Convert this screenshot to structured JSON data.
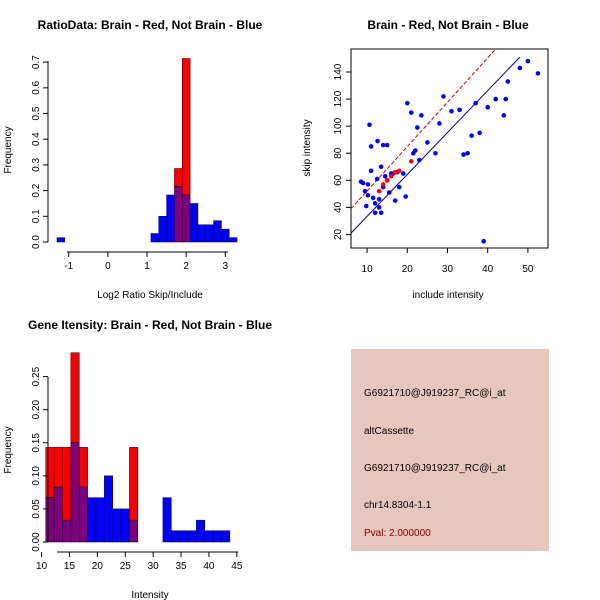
{
  "colors": {
    "red": "#ff0000",
    "blue": "#0000ff",
    "overlap": "#7f007f",
    "info_bg": "#e6c6be",
    "red_line": "#cc0000",
    "blue_line": "#00008b",
    "pval": "#8b0000"
  },
  "chart_data": [
    {
      "type": "histogram",
      "title": "RatioData: Brain - Red, Not Brain - Blue",
      "xlabel": "Log2 Ratio Skip/Include",
      "ylabel": "Frequency",
      "xlim": [
        -1.3,
        3.4
      ],
      "ylim": [
        0,
        0.72
      ],
      "xticks": [
        "-1",
        "0",
        "1",
        "2",
        "3"
      ],
      "xtick_values": [
        -1,
        0,
        1,
        2,
        3
      ],
      "yticks": [
        "0.0",
        "0.1",
        "0.2",
        "0.3",
        "0.4",
        "0.5",
        "0.6",
        "0.7"
      ],
      "ytick_values": [
        0,
        0.1,
        0.2,
        0.3,
        0.4,
        0.5,
        0.6,
        0.7
      ],
      "bin_width": 0.2,
      "bin_starts": [
        -1.3,
        -1.1,
        -0.9,
        -0.7,
        -0.5,
        -0.3,
        -0.1,
        0.1,
        0.3,
        0.5,
        0.7,
        0.9,
        1.1,
        1.3,
        1.5,
        1.7,
        1.9,
        2.1,
        2.3,
        2.5,
        2.7,
        2.9,
        3.1
      ],
      "series": [
        {
          "name": "Not Brain",
          "color": "blue",
          "values": [
            0.017,
            0,
            0,
            0,
            0,
            0,
            0,
            0,
            0,
            0,
            0,
            0,
            0.033,
            0.1,
            0.183,
            0.217,
            0.183,
            0.15,
            0.067,
            0.067,
            0.083,
            0.05,
            0.017
          ]
        },
        {
          "name": "Brain",
          "color": "red",
          "values": [
            0,
            0,
            0,
            0,
            0,
            0,
            0,
            0,
            0,
            0,
            0,
            0,
            0,
            0,
            0,
            0.286,
            0.714,
            0,
            0,
            0,
            0,
            0,
            0
          ]
        }
      ]
    },
    {
      "type": "scatter",
      "title": "Brain - Red, Not Brain - Blue",
      "xlabel": "include intensity",
      "ylabel": "skip intensity",
      "xlim": [
        6,
        55
      ],
      "ylim": [
        10,
        157
      ],
      "xticks": [
        "10",
        "20",
        "30",
        "40",
        "50"
      ],
      "xtick_values": [
        10,
        20,
        30,
        40,
        50
      ],
      "yticks": [
        "20",
        "40",
        "60",
        "80",
        "100",
        "120",
        "140"
      ],
      "ytick_values": [
        20,
        40,
        60,
        80,
        100,
        120,
        140
      ],
      "series": [
        {
          "name": "Not Brain",
          "color": "blue",
          "points": [
            [
              8.5,
              59
            ],
            [
              9,
              58
            ],
            [
              9.5,
              52
            ],
            [
              9.8,
              41
            ],
            [
              10.2,
              49
            ],
            [
              10.2,
              57
            ],
            [
              10.6,
              101
            ],
            [
              11,
              67
            ],
            [
              11,
              85
            ],
            [
              11.5,
              47
            ],
            [
              12,
              43
            ],
            [
              12,
              36
            ],
            [
              12.5,
              61
            ],
            [
              12.6,
              89
            ],
            [
              13,
              40
            ],
            [
              13,
              46
            ],
            [
              13.5,
              36
            ],
            [
              13.5,
              70
            ],
            [
              14,
              86
            ],
            [
              14,
              55
            ],
            [
              14.5,
              63
            ],
            [
              15,
              86
            ],
            [
              15,
              60
            ],
            [
              15.5,
              51
            ],
            [
              16,
              65
            ],
            [
              16.5,
              65
            ],
            [
              17,
              45
            ],
            [
              17.5,
              66
            ],
            [
              18,
              55
            ],
            [
              19,
              65
            ],
            [
              19.6,
              48
            ],
            [
              20,
              117
            ],
            [
              21,
              110
            ],
            [
              21.5,
              80
            ],
            [
              22,
              82
            ],
            [
              22.5,
              99
            ],
            [
              23,
              75
            ],
            [
              23.5,
              108
            ],
            [
              25,
              88
            ],
            [
              27,
              80
            ],
            [
              28,
              102
            ],
            [
              29,
              122
            ],
            [
              31,
              111
            ],
            [
              33,
              112
            ],
            [
              34,
              79
            ],
            [
              35,
              80
            ],
            [
              36,
              93
            ],
            [
              37,
              117
            ],
            [
              38,
              95
            ],
            [
              39,
              15
            ],
            [
              40,
              114
            ],
            [
              42,
              120
            ],
            [
              44,
              108
            ],
            [
              44.5,
              120
            ],
            [
              45,
              133
            ],
            [
              48,
              143
            ],
            [
              50,
              148
            ],
            [
              52.5,
              139
            ]
          ]
        },
        {
          "name": "Brain",
          "color": "red",
          "points": [
            [
              13,
              52
            ],
            [
              14,
              57
            ],
            [
              15,
              60
            ],
            [
              16,
              63
            ],
            [
              17,
              66
            ],
            [
              18,
              67
            ],
            [
              21,
              74
            ]
          ]
        }
      ],
      "lines": [
        {
          "name": "Brain fit",
          "color": "red_line",
          "dash": true,
          "from": [
            6,
            39
          ],
          "to": [
            42,
            157
          ]
        },
        {
          "name": "Not Brain fit",
          "color": "blue_line",
          "dash": false,
          "from": [
            6,
            21
          ],
          "to": [
            48,
            151
          ]
        }
      ]
    },
    {
      "type": "histogram",
      "title": "Gene Itensity: Brain - Red, Not Brain - Blue",
      "xlabel": "Intensity",
      "ylabel": "Frequency",
      "xlim": [
        9,
        47
      ],
      "ylim": [
        0,
        0.3
      ],
      "xticks": [
        "10",
        "15",
        "20",
        "25",
        "30",
        "35",
        "40",
        "45"
      ],
      "xtick_values": [
        10,
        15,
        20,
        25,
        30,
        35,
        40,
        45
      ],
      "yticks": [
        "0.00",
        "0.05",
        "0.10",
        "0.15",
        "0.20",
        "0.25"
      ],
      "ytick_values": [
        0,
        0.05,
        0.1,
        0.15,
        0.2,
        0.25
      ],
      "bin_width": 1.5,
      "bin_starts": [
        10.75,
        12.25,
        13.75,
        15.25,
        16.75,
        18.25,
        19.75,
        21.25,
        22.75,
        24.25,
        25.75,
        27.25,
        28.75,
        30.25,
        31.75,
        33.25,
        34.75,
        36.25,
        37.75,
        39.25,
        40.75,
        42.25,
        43.75
      ],
      "series": [
        {
          "name": "Not Brain",
          "color": "blue",
          "values": [
            0.067,
            0.083,
            0.033,
            0.15,
            0.083,
            0.067,
            0.067,
            0.1,
            0.05,
            0.05,
            0.033,
            0,
            0,
            0,
            0.067,
            0.017,
            0.017,
            0.017,
            0.033,
            0.017,
            0.017,
            0.017,
            0
          ]
        },
        {
          "name": "Brain",
          "color": "red",
          "values": [
            0.143,
            0.143,
            0.143,
            0.286,
            0.143,
            0,
            0,
            0,
            0,
            0,
            0.143,
            0,
            0,
            0,
            0,
            0,
            0,
            0,
            0,
            0,
            0,
            0,
            0
          ]
        }
      ]
    }
  ],
  "info_panel": {
    "probe_id": "G6921710@J919237_RC@i_at",
    "event_type": "altCassette",
    "probe_id_repeat": "G6921710@J919237_RC@i_at",
    "location": "chr14.8304-1.1",
    "pval": "Pval: 2.000000"
  }
}
